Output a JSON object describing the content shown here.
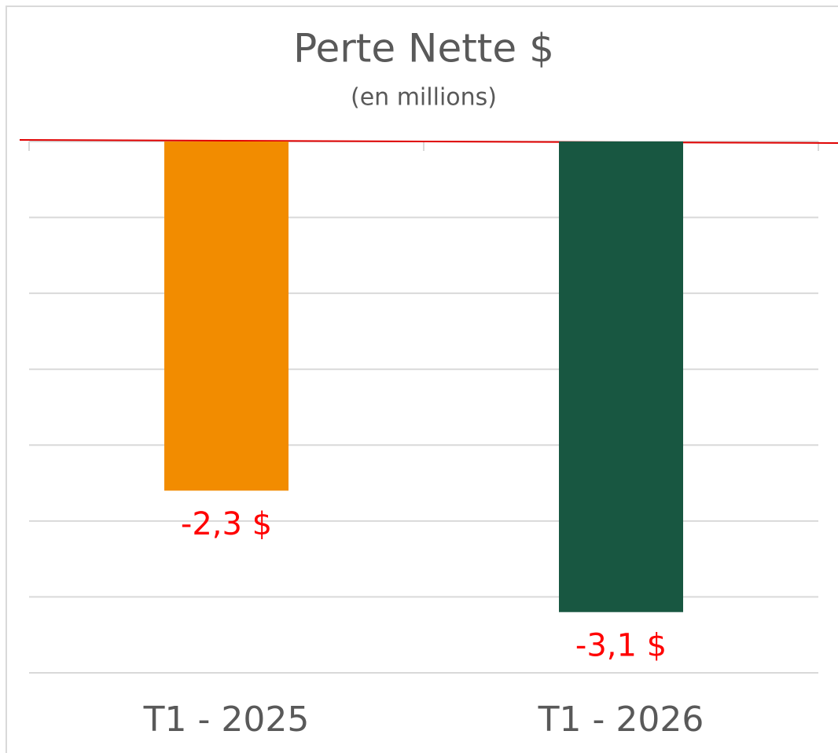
{
  "chart_data": {
    "type": "bar",
    "title": "Perte Nette $",
    "subtitle": "(en millions)",
    "categories": [
      "T1 - 2025",
      "T1 - 2026"
    ],
    "values": [
      -2.3,
      -3.1
    ],
    "value_labels": [
      "-2,3 $",
      "-3,1 $"
    ],
    "colors": [
      "#f28c00",
      "#185741"
    ],
    "value_label_color": "#ff0000",
    "zero_line_color": "#e00000",
    "ylim": [
      -3.5,
      0
    ],
    "yticks": [
      0,
      -0.5,
      -1,
      -1.5,
      -2,
      -2.5,
      -3,
      -3.5
    ],
    "grid": true
  }
}
